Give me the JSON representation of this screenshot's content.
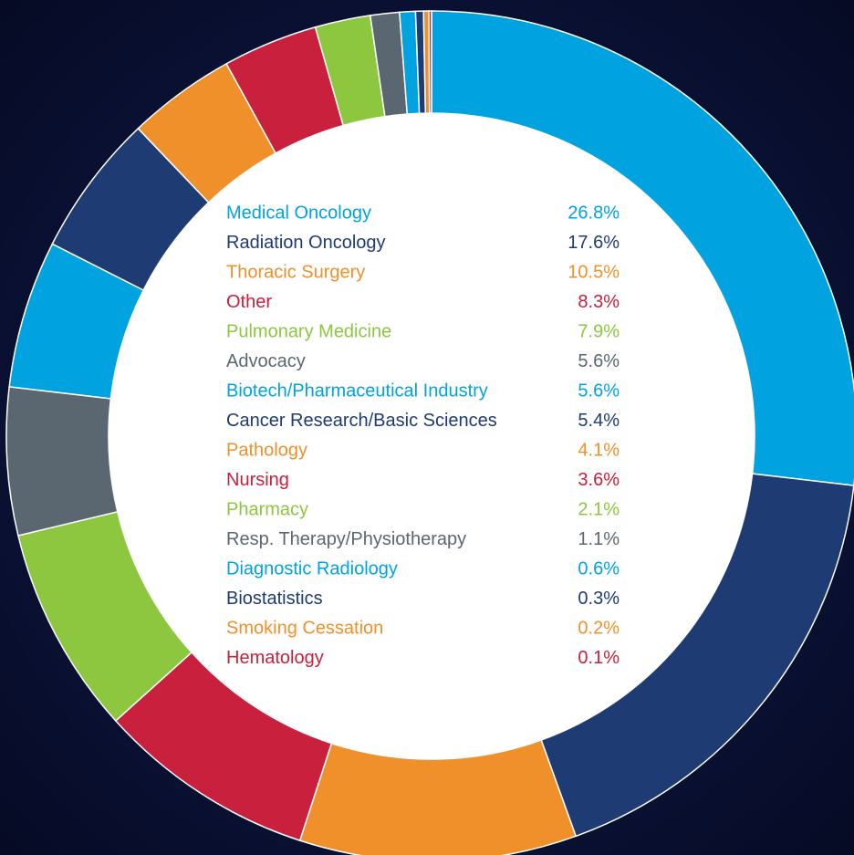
{
  "chart_data": {
    "type": "donut",
    "categories": [
      "Medical Oncology",
      "Radiation Oncology",
      "Thoracic Surgery",
      "Other",
      "Pulmonary Medicine",
      "Advocacy",
      "Biotech/Pharmaceutical Industry",
      "Cancer Research/Basic Sciences",
      "Pathology",
      "Nursing",
      "Pharmacy",
      "Resp. Therapy/Physiotherapy",
      "Diagnostic Radiology",
      "Biostatistics",
      "Smoking Cessation",
      "Hematology"
    ],
    "values": [
      26.8,
      17.6,
      10.5,
      8.3,
      7.9,
      5.6,
      5.6,
      5.4,
      4.1,
      3.6,
      2.1,
      1.1,
      0.6,
      0.3,
      0.2,
      0.1
    ],
    "value_labels": [
      "26.8%",
      "17.6%",
      "10.5%",
      "8.3%",
      "7.9%",
      "5.6%",
      "5.6%",
      "5.4%",
      "4.1%",
      "3.6%",
      "2.1%",
      "1.1%",
      "0.6%",
      "0.3%",
      "0.2%",
      "0.1%"
    ],
    "colors": [
      "#00a3e0",
      "#1f3b74",
      "#f0902a",
      "#c8203d",
      "#8dc63f",
      "#5b6770",
      "#00a3e0",
      "#1f3b74",
      "#f0902a",
      "#c8203d",
      "#8dc63f",
      "#5b6770",
      "#00a3e0",
      "#1f3b74",
      "#f0902a",
      "#c8203d"
    ]
  }
}
